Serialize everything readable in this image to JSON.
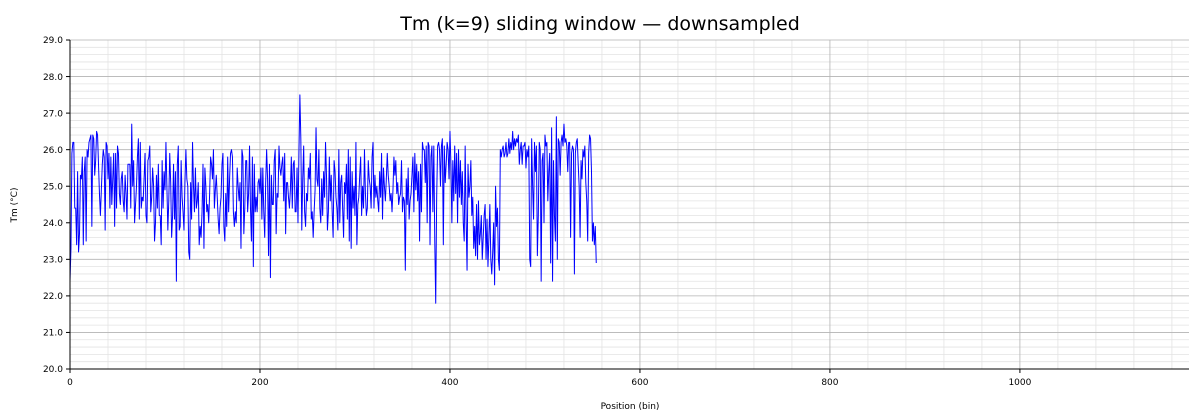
{
  "chart_data": {
    "type": "line",
    "title": "Tm (k=9) sliding window — downsampled",
    "xlabel": "Position (bin)",
    "ylabel": "Tm (°C)",
    "xlim": [
      0,
      1178
    ],
    "ylim": [
      20.0,
      29.0
    ],
    "x_ticks": [
      0,
      200,
      400,
      600,
      800,
      1000
    ],
    "x_tick_labels": [
      "0",
      "200",
      "400",
      "600",
      "800",
      "1000"
    ],
    "y_ticks": [
      20,
      21,
      22,
      23,
      24,
      25,
      26,
      27,
      28,
      29
    ],
    "y_tick_labels": [
      "20.0",
      "21.0",
      "22.0",
      "23.0",
      "24.0",
      "25.0",
      "26.0",
      "27.0",
      "28.0",
      "29.0"
    ],
    "grid": true,
    "minor_grid": true,
    "series": [
      {
        "color": "#0000ff",
        "x_start": 0,
        "x_step": 1,
        "values": [
          22.4,
          23.3,
          25.9,
          26.2,
          26.2,
          24.4,
          24.4,
          23.4,
          25.4,
          23.2,
          23.7,
          25.3,
          25.2,
          25.8,
          23.4,
          25.4,
          25.8,
          23.5,
          26.0,
          25.8,
          26.2,
          26.3,
          26.4,
          23.9,
          26.4,
          26.3,
          25.3,
          25.7,
          26.5,
          26.4,
          25.6,
          24.8,
          24.2,
          24.9,
          25.6,
          26.0,
          25.8,
          23.8,
          26.2,
          26.1,
          25.2,
          25.9,
          24.4,
          25.8,
          24.5,
          25.2,
          25.9,
          23.9,
          25.9,
          24.4,
          26.1,
          25.9,
          24.8,
          24.5,
          25.2,
          25.4,
          24.6,
          24.3,
          25.3,
          24.8,
          24.1,
          25.6,
          25.6,
          25.6,
          24.4,
          26.7,
          25.0,
          25.7,
          24.0,
          24.5,
          25.0,
          25.8,
          26.3,
          24.1,
          26.2,
          24.4,
          24.7,
          24.6,
          25.2,
          25.9,
          24.2,
          24.0,
          25.7,
          25.8,
          26.1,
          24.3,
          24.7,
          25.5,
          25.0,
          23.5,
          24.0,
          25.3,
          24.4,
          25.6,
          24.2,
          24.2,
          23.4,
          25.7,
          24.4,
          25.4,
          24.9,
          26.2,
          25.0,
          23.8,
          24.6,
          25.9,
          25.1,
          23.6,
          24.2,
          25.6,
          24.1,
          25.4,
          22.4,
          25.6,
          26.1,
          23.8,
          23.9,
          25.7,
          24.7,
          24.3,
          23.8,
          25.1,
          26.0,
          25.2,
          25.0,
          23.2,
          23.0,
          25.1,
          24.1,
          26.2,
          25.0,
          24.3,
          25.5,
          24.4,
          24.6,
          25.1,
          23.4,
          23.9,
          23.6,
          24.3,
          25.6,
          23.3,
          25.5,
          25.0,
          24.3,
          24.5,
          24.0,
          24.8,
          25.8,
          25.6,
          25.2,
          26.0,
          24.4,
          24.9,
          25.3,
          24.7,
          24.1,
          23.7,
          24.4,
          24.7,
          25.6,
          25.9,
          23.9,
          23.5,
          24.8,
          23.9,
          25.8,
          24.3,
          25.2,
          25.9,
          26.0,
          25.8,
          24.3,
          23.9,
          24.3,
          24.0,
          25.5,
          25.0,
          24.6,
          25.1,
          23.3,
          26.0,
          25.8,
          23.7,
          24.4,
          25.7,
          25.7,
          24.3,
          24.8,
          26.1,
          24.4,
          23.5,
          25.8,
          22.8,
          25.6,
          24.3,
          24.7,
          24.3,
          25.1,
          25.2,
          24.8,
          25.5,
          24.1,
          25.5,
          24.3,
          23.6,
          25.1,
          26.0,
          25.2,
          23.1,
          25.6,
          22.5,
          25.3,
          24.5,
          24.5,
          25.7,
          26.0,
          23.7,
          24.8,
          24.7,
          26.1,
          25.5,
          25.3,
          25.6,
          25.8,
          24.6,
          25.9,
          23.7,
          25.1,
          25.1,
          24.7,
          24.4,
          24.9,
          25.8,
          24.4,
          25.6,
          25.7,
          24.3,
          24.3,
          25.5,
          24.0,
          25.9,
          27.5,
          26.3,
          23.8,
          25.2,
          26.1,
          24.3,
          23.9,
          24.8,
          24.6,
          25.5,
          25.2,
          25.9,
          24.1,
          24.3,
          23.6,
          24.3,
          24.9,
          26.6,
          25.2,
          25.0,
          26.0,
          24.4,
          24.0,
          25.2,
          24.2,
          25.4,
          24.7,
          26.2,
          25.3,
          23.8,
          24.3,
          25.8,
          24.6,
          25.3,
          24.3,
          23.6,
          25.7,
          25.4,
          24.7,
          24.4,
          23.8,
          26.0,
          24.0,
          25.1,
          25.3,
          24.4,
          23.6,
          25.1,
          24.8,
          25.6,
          24.1,
          26.0,
          23.5,
          25.8,
          23.3,
          25.4,
          24.4,
          25.0,
          24.2,
          26.2,
          23.4,
          24.5,
          24.7,
          25.3,
          25.8,
          24.2,
          25.0,
          24.4,
          26.0,
          24.8,
          24.2,
          24.4,
          25.7,
          25.2,
          25.0,
          24.4,
          25.8,
          26.2,
          24.4,
          25.3,
          24.7,
          25.0,
          24.6,
          24.3,
          25.4,
          24.7,
          25.9,
          24.1,
          25.5,
          25.0,
          24.6,
          25.2,
          25.9,
          25.3,
          25.0,
          24.6,
          24.8,
          24.3,
          24.9,
          25.8,
          25.3,
          25.7,
          24.8,
          25.1,
          24.5,
          24.7,
          24.8,
          25.7,
          24.3,
          24.7,
          24.6,
          22.7,
          25.2,
          24.5,
          25.5,
          24.1,
          24.6,
          24.8,
          25.3,
          25.8,
          24.3,
          25.9,
          24.9,
          25.6,
          24.6,
          25.4,
          23.5,
          25.6,
          24.3,
          26.2,
          26.0,
          26.0,
          25.1,
          26.1,
          24.0,
          26.2,
          26.1,
          23.4,
          25.8,
          26.1,
          24.3,
          26.1,
          23.5,
          21.8,
          24.7,
          26.1,
          26.2,
          26.0,
          25.0,
          26.1,
          26.3,
          23.4,
          26.1,
          25.1,
          25.6,
          26.2,
          26.0,
          25.2,
          26.5,
          25.6,
          24.0,
          25.7,
          24.6,
          26.1,
          24.8,
          25.9,
          24.0,
          26.0,
          24.7,
          25.7,
          24.5,
          25.4,
          24.0,
          23.5,
          26.1,
          24.1,
          22.7,
          25.6,
          24.7,
          25.0,
          25.7,
          24.2,
          24.7,
          23.3,
          23.9,
          23.1,
          24.5,
          23.0,
          24.6,
          23.4,
          23.7,
          24.2,
          23.0,
          23.6,
          24.2,
          24.5,
          23.0,
          24.1,
          22.8,
          23.6,
          24.5,
          23.0,
          22.6,
          23.2,
          24.0,
          22.3,
          25.0,
          23.9,
          24.4,
          23.0,
          22.7,
          26.0,
          25.8,
          26.0,
          26.1,
          25.8,
          25.9,
          26.2,
          25.8,
          25.9,
          26.3,
          25.9,
          26.2,
          26.0,
          26.5,
          26.0,
          26.3,
          26.1,
          26.3,
          26.2,
          26.4,
          25.6,
          26.0,
          26.2,
          25.6,
          26.1,
          26.1,
          26.2,
          25.5,
          26.0,
          25.8,
          26.1,
          23.0,
          22.8,
          26.3,
          25.0,
          24.1,
          26.2,
          25.4,
          26.1,
          23.1,
          24.2,
          26.2,
          26.0,
          22.4,
          25.7,
          25.9,
          24.0,
          26.4,
          26.1,
          26.2,
          24.6,
          25.4,
          25.9,
          22.9,
          26.6,
          22.4,
          25.7,
          24.2,
          23.5,
          26.9,
          23.0,
          26.3,
          26.2,
          25.3,
          26.2,
          26.4,
          26.1,
          26.7,
          26.2,
          26.3,
          26.1,
          25.4,
          26.2,
          26.2,
          23.6,
          25.9,
          26.1,
          26.0,
          22.6,
          25.9,
          26.2,
          26.3,
          25.6,
          25.0,
          23.6,
          25.7,
          25.2,
          26.0,
          25.8,
          26.1,
          25.1,
          24.6,
          23.5,
          25.9,
          26.4,
          26.3,
          25.4,
          23.5,
          24.0,
          23.4,
          23.9,
          22.9
        ]
      }
    ]
  }
}
